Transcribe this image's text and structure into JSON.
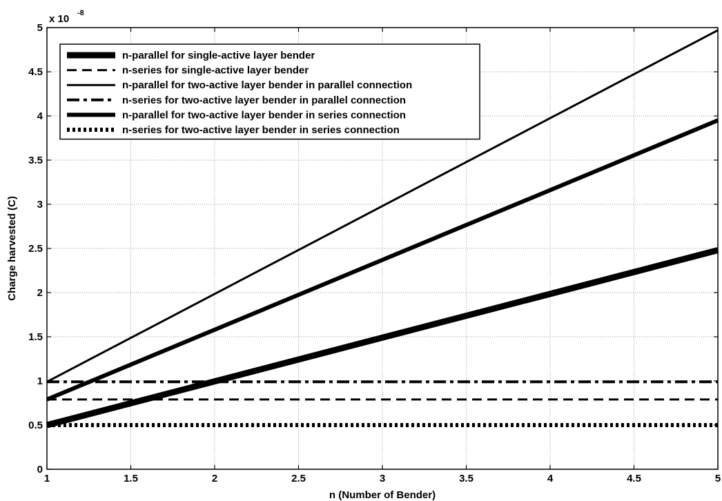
{
  "chart_data": {
    "type": "line",
    "xlabel": "n (Number of Bender)",
    "ylabel": "Charge harvested (C)",
    "y_exponent_base": "x 10",
    "y_exponent_power": "-8",
    "x_ticks": [
      "1",
      "1.5",
      "2",
      "2.5",
      "3",
      "3.5",
      "4",
      "4.5",
      "5"
    ],
    "y_ticks": [
      "0",
      "0.5",
      "1",
      "1.5",
      "2",
      "2.5",
      "3",
      "3.5",
      "4",
      "4.5",
      "5"
    ],
    "xlim": [
      1,
      5
    ],
    "ylim": [
      0,
      5
    ],
    "y_scale_note": "values in units of 1e-8 C",
    "grid": true,
    "legend_position": "top-left",
    "series": [
      {
        "name": "n-parallel for single-active layer bender",
        "x": [
          1,
          5
        ],
        "y": [
          0.5,
          2.48
        ],
        "style": "solid",
        "width": 9
      },
      {
        "name": "n-series for single-active layer bender",
        "x": [
          1,
          5
        ],
        "y": [
          0.79,
          0.79
        ],
        "style": "dashed",
        "width": 3
      },
      {
        "name": "n-parallel for two-active layer bender in parallel connection",
        "x": [
          1,
          5
        ],
        "y": [
          0.99,
          4.97
        ],
        "style": "solid",
        "width": 3
      },
      {
        "name": "n-series for two-active layer bender in parallel connection",
        "x": [
          1,
          5
        ],
        "y": [
          0.99,
          0.99
        ],
        "style": "dashdot",
        "width": 4
      },
      {
        "name": "n-parallel for two-active layer bender in series connection",
        "x": [
          1,
          5
        ],
        "y": [
          0.79,
          3.95
        ],
        "style": "solid",
        "width": 6
      },
      {
        "name": "n-series for two-active layer bender in series connection",
        "x": [
          1,
          5
        ],
        "y": [
          0.5,
          0.5
        ],
        "style": "dotted",
        "width": 6
      }
    ]
  }
}
